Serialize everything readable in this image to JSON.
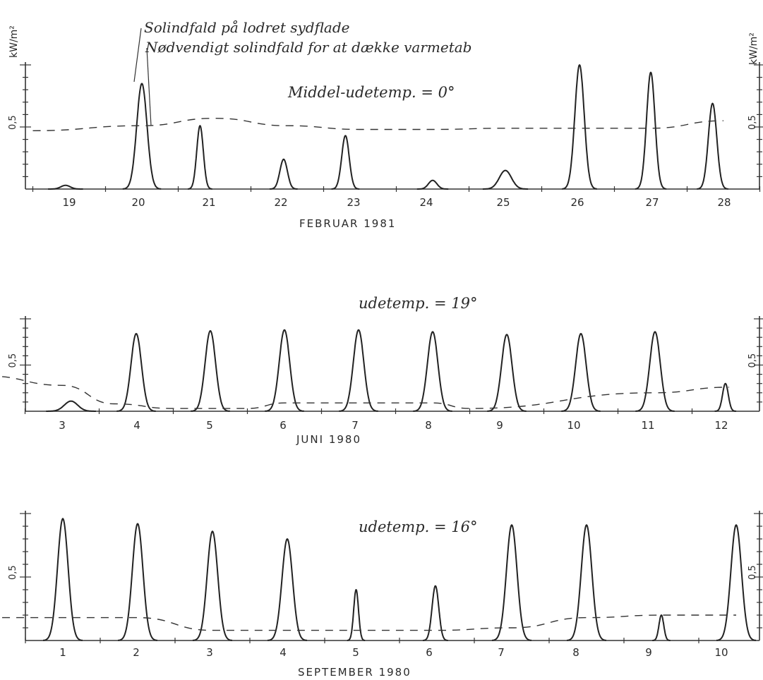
{
  "legend": {
    "solar": "Solindfald på lodret sydflade",
    "needed": "Nødvendigt solindfald for at dække varmetab"
  },
  "unit_left": "kW/m²",
  "unit_right": "kW/m²",
  "chart_data": [
    {
      "type": "line",
      "annotation": "Middel-udetemp. = 0°",
      "xlabel": "FEBRUAR 1981",
      "categories": [
        "19",
        "20",
        "21",
        "22",
        "23",
        "24",
        "25",
        "26",
        "27",
        "28"
      ],
      "ylim": [
        0,
        1.0
      ],
      "y_tick_label": "0,5",
      "series": [
        {
          "name": "Solindfald på lodret sydflade",
          "day_peaks": [
            0.03,
            0.85,
            0.51,
            0.24,
            0.43,
            0.07,
            0.15,
            1.0,
            0.94,
            0.69
          ]
        },
        {
          "name": "Nødvendigt solindfald for at dække varmetab",
          "x": [
            19,
            20.5,
            21.5,
            22.5,
            23.5,
            24.5,
            25.5,
            26.5,
            27.5,
            28.5
          ],
          "values": [
            0.47,
            0.51,
            0.57,
            0.51,
            0.48,
            0.48,
            0.49,
            0.49,
            0.49,
            0.55
          ]
        }
      ]
    },
    {
      "type": "line",
      "annotation": "udetemp. = 19°",
      "xlabel": "JUNI 1980",
      "categories": [
        "3",
        "4",
        "5",
        "6",
        "7",
        "8",
        "9",
        "10",
        "11",
        "12"
      ],
      "ylim": [
        0,
        1.0
      ],
      "y_tick_label": "0,5",
      "series": [
        {
          "name": "Solindfald på lodret sydflade",
          "day_peaks": [
            0.11,
            0.84,
            0.87,
            0.88,
            0.88,
            0.86,
            0.83,
            0.84,
            0.86,
            0.3
          ]
        },
        {
          "name": "Nødvendigt solindfald for at dække varmetab",
          "x": [
            2.5,
            3.5,
            4.2,
            5.0,
            6.0,
            6.5,
            7.5,
            8.5,
            9.0,
            11.5,
            12.5
          ],
          "values": [
            0.38,
            0.28,
            0.08,
            0.03,
            0.03,
            0.09,
            0.09,
            0.09,
            0.03,
            0.2,
            0.26
          ]
        }
      ]
    },
    {
      "type": "line",
      "annotation": "udetemp. = 16°",
      "xlabel": "SEPTEMBER 1980",
      "categories": [
        "1",
        "2",
        "3",
        "4",
        "5",
        "6",
        "7",
        "8",
        "9",
        "10"
      ],
      "ylim": [
        0,
        1.0
      ],
      "y_tick_label": "0,5",
      "series": [
        {
          "name": "Solindfald på lodret sydflade",
          "day_peaks": [
            0.96,
            0.92,
            0.86,
            0.8,
            0.4,
            0.43,
            0.91,
            0.91,
            0.2,
            0.91
          ]
        },
        {
          "name": "Nødvendigt solindfald for at dække varmetab",
          "x": [
            0.5,
            2.5,
            3.5,
            4.5,
            5.5,
            6.5,
            7.5,
            8.5,
            9.5,
            10.5
          ],
          "values": [
            0.18,
            0.18,
            0.08,
            0.08,
            0.08,
            0.08,
            0.1,
            0.18,
            0.2,
            0.2
          ]
        }
      ]
    }
  ]
}
